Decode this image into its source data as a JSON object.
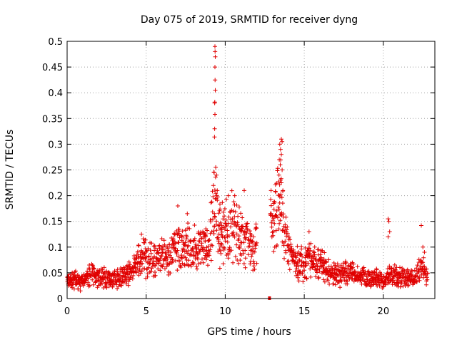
{
  "chart_data": {
    "type": "scatter",
    "title": "Day 075 of 2019, SRMTID for receiver dyng",
    "xlabel": "GPS time / hours",
    "ylabel": "SRMTID / TECUs",
    "xlim": [
      0,
      23.26
    ],
    "ylim": [
      0,
      0.5
    ],
    "x_ticks": [
      0,
      5,
      10,
      15,
      20
    ],
    "x_tick_labels": [
      "0",
      "5",
      "10",
      "15",
      "20"
    ],
    "y_ticks": [
      0,
      0.05,
      0.1,
      0.15,
      0.2,
      0.25,
      0.3,
      0.35,
      0.4,
      0.45,
      0.5
    ],
    "y_tick_labels": [
      "0",
      "0.05",
      "0.1",
      "0.15",
      "0.2",
      "0.25",
      "0.3",
      "0.35",
      "0.4",
      "0.45",
      "0.5"
    ],
    "grid": true,
    "marker": "+",
    "color": "#e00000",
    "series": [
      {
        "name": "SRMTID",
        "profile": [
          {
            "x": 0.0,
            "y": 0.035
          },
          {
            "x": 0.5,
            "y": 0.035
          },
          {
            "x": 1.0,
            "y": 0.032
          },
          {
            "x": 1.5,
            "y": 0.05
          },
          {
            "x": 2.0,
            "y": 0.04
          },
          {
            "x": 2.5,
            "y": 0.04
          },
          {
            "x": 3.0,
            "y": 0.04
          },
          {
            "x": 3.5,
            "y": 0.042
          },
          {
            "x": 4.0,
            "y": 0.05
          },
          {
            "x": 4.5,
            "y": 0.07
          },
          {
            "x": 5.0,
            "y": 0.08
          },
          {
            "x": 5.5,
            "y": 0.07
          },
          {
            "x": 6.0,
            "y": 0.08
          },
          {
            "x": 6.5,
            "y": 0.085
          },
          {
            "x": 7.0,
            "y": 0.1
          },
          {
            "x": 7.5,
            "y": 0.1
          },
          {
            "x": 8.0,
            "y": 0.095
          },
          {
            "x": 8.5,
            "y": 0.09
          },
          {
            "x": 9.0,
            "y": 0.11
          },
          {
            "x": 9.3,
            "y": 0.2
          },
          {
            "x": 9.6,
            "y": 0.12
          },
          {
            "x": 10.0,
            "y": 0.13
          },
          {
            "x": 10.5,
            "y": 0.14
          },
          {
            "x": 11.0,
            "y": 0.12
          },
          {
            "x": 11.5,
            "y": 0.11
          },
          {
            "x": 12.0,
            "y": 0.1
          },
          {
            "x": 12.9,
            "y": 0.14
          },
          {
            "x": 13.5,
            "y": 0.18
          },
          {
            "x": 14.0,
            "y": 0.1
          },
          {
            "x": 14.5,
            "y": 0.07
          },
          {
            "x": 15.0,
            "y": 0.07
          },
          {
            "x": 15.5,
            "y": 0.08
          },
          {
            "x": 16.0,
            "y": 0.07
          },
          {
            "x": 16.5,
            "y": 0.05
          },
          {
            "x": 17.0,
            "y": 0.045
          },
          {
            "x": 17.5,
            "y": 0.05
          },
          {
            "x": 18.0,
            "y": 0.05
          },
          {
            "x": 18.5,
            "y": 0.045
          },
          {
            "x": 19.0,
            "y": 0.04
          },
          {
            "x": 19.5,
            "y": 0.04
          },
          {
            "x": 20.0,
            "y": 0.03
          },
          {
            "x": 20.5,
            "y": 0.05
          },
          {
            "x": 21.0,
            "y": 0.045
          },
          {
            "x": 21.5,
            "y": 0.04
          },
          {
            "x": 22.0,
            "y": 0.04
          },
          {
            "x": 22.5,
            "y": 0.06
          },
          {
            "x": 22.8,
            "y": 0.045
          }
        ],
        "spikes": [
          {
            "x": 9.35,
            "y": 0.49
          },
          {
            "x": 9.36,
            "y": 0.48
          },
          {
            "x": 9.37,
            "y": 0.47
          },
          {
            "x": 9.35,
            "y": 0.45
          },
          {
            "x": 9.36,
            "y": 0.425
          },
          {
            "x": 9.37,
            "y": 0.405
          },
          {
            "x": 9.33,
            "y": 0.38
          },
          {
            "x": 9.34,
            "y": 0.382
          },
          {
            "x": 9.35,
            "y": 0.358
          },
          {
            "x": 9.33,
            "y": 0.33
          },
          {
            "x": 9.32,
            "y": 0.314
          },
          {
            "x": 9.4,
            "y": 0.255
          },
          {
            "x": 9.3,
            "y": 0.245
          },
          {
            "x": 9.45,
            "y": 0.24
          },
          {
            "x": 9.25,
            "y": 0.22
          },
          {
            "x": 9.5,
            "y": 0.21
          },
          {
            "x": 13.55,
            "y": 0.31
          },
          {
            "x": 13.6,
            "y": 0.305
          },
          {
            "x": 13.45,
            "y": 0.3
          },
          {
            "x": 13.5,
            "y": 0.29
          },
          {
            "x": 13.55,
            "y": 0.28
          },
          {
            "x": 13.42,
            "y": 0.27
          },
          {
            "x": 13.48,
            "y": 0.26
          },
          {
            "x": 13.6,
            "y": 0.25
          },
          {
            "x": 13.4,
            "y": 0.24
          },
          {
            "x": 13.5,
            "y": 0.23
          },
          {
            "x": 13.55,
            "y": 0.225
          },
          {
            "x": 13.65,
            "y": 0.21
          },
          {
            "x": 12.9,
            "y": 0.21
          },
          {
            "x": 10.6,
            "y": 0.2
          },
          {
            "x": 10.2,
            "y": 0.2
          },
          {
            "x": 11.2,
            "y": 0.21
          },
          {
            "x": 7.0,
            "y": 0.18
          },
          {
            "x": 7.6,
            "y": 0.165
          },
          {
            "x": 20.3,
            "y": 0.155
          },
          {
            "x": 20.35,
            "y": 0.15
          },
          {
            "x": 20.4,
            "y": 0.13
          },
          {
            "x": 20.3,
            "y": 0.12
          },
          {
            "x": 22.4,
            "y": 0.142
          },
          {
            "x": 22.5,
            "y": 0.1
          },
          {
            "x": 22.6,
            "y": 0.09
          },
          {
            "x": 15.3,
            "y": 0.13
          },
          {
            "x": 4.7,
            "y": 0.125
          },
          {
            "x": 10.5,
            "y": 0.17
          },
          {
            "x": 10.8,
            "y": 0.16
          }
        ],
        "gap_marker": {
          "x": 12.8,
          "y": 0.0
        }
      }
    ]
  }
}
